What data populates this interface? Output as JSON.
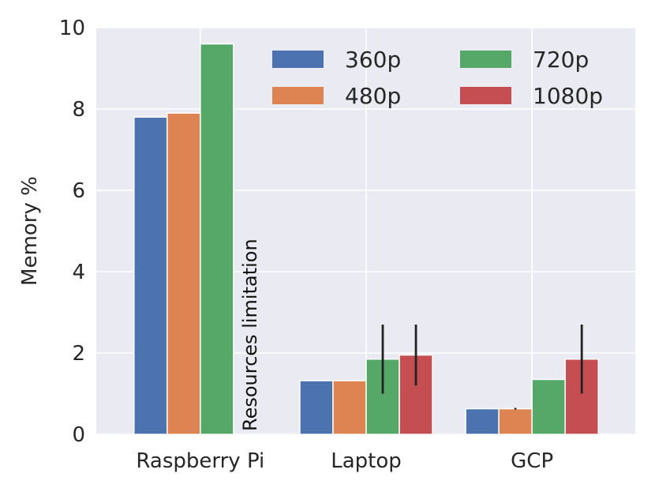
{
  "chart_data": {
    "type": "bar",
    "title": "",
    "xlabel": "",
    "ylabel": "Memory %",
    "ylim": [
      0,
      10
    ],
    "yticks": [
      0,
      2,
      4,
      6,
      8,
      10
    ],
    "categories": [
      "Raspberry Pi",
      "Laptop",
      "GCP"
    ],
    "series": [
      {
        "name": "360p",
        "color": "#4c72b0",
        "values": [
          7.8,
          1.32,
          0.63
        ],
        "errors": [
          0,
          0,
          0
        ]
      },
      {
        "name": "480p",
        "color": "#dd8452",
        "values": [
          7.9,
          1.32,
          0.63
        ],
        "errors": [
          0,
          0,
          0.02
        ]
      },
      {
        "name": "720p",
        "color": "#55a868",
        "values": [
          9.6,
          1.85,
          1.35
        ],
        "errors": [
          0,
          0.85,
          0
        ]
      },
      {
        "name": "1080p",
        "color": "#c44e52",
        "values": [
          null,
          1.95,
          1.85
        ],
        "errors": [
          0,
          0.75,
          0.85
        ]
      }
    ],
    "annotations": [
      {
        "text": "Resources limitation",
        "category": "Raspberry Pi",
        "series": "1080p"
      }
    ],
    "legend": {
      "placement": "top-right",
      "columns": 2
    },
    "grid": true,
    "background": "#eaeaf2"
  }
}
